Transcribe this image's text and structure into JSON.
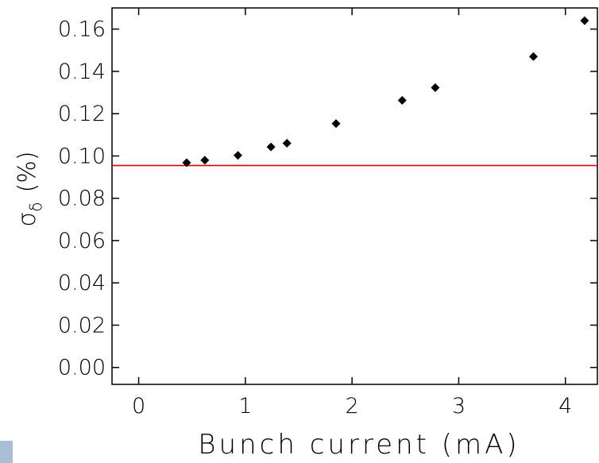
{
  "chart_data": {
    "type": "scatter",
    "xlabel": "Bunch current (mA)",
    "ylabel": "σ",
    "ylabel_sub": "δ",
    "ylabel_unit": "(%)",
    "xlim": [
      -0.25,
      4.3
    ],
    "ylim": [
      -0.008,
      0.17
    ],
    "xticks": [
      0,
      1,
      2,
      3,
      4
    ],
    "xtick_labels": [
      "0",
      "1",
      "2",
      "3",
      "4"
    ],
    "yticks": [
      0.0,
      0.02,
      0.04,
      0.06,
      0.08,
      0.1,
      0.12,
      0.14,
      0.16
    ],
    "ytick_labels": [
      "0.00",
      "0.02",
      "0.04",
      "0.06",
      "0.08",
      "0.10",
      "0.12",
      "0.14",
      "0.16"
    ],
    "grid": false,
    "series": [
      {
        "marker": "diamond",
        "color": "#000000",
        "points": [
          {
            "x": 0.45,
            "y": 0.0968
          },
          {
            "x": 0.62,
            "y": 0.098
          },
          {
            "x": 0.93,
            "y": 0.1003
          },
          {
            "x": 1.24,
            "y": 0.1043
          },
          {
            "x": 1.39,
            "y": 0.106
          },
          {
            "x": 1.85,
            "y": 0.1153
          },
          {
            "x": 2.47,
            "y": 0.1263
          },
          {
            "x": 2.78,
            "y": 0.1323
          },
          {
            "x": 3.7,
            "y": 0.147
          },
          {
            "x": 4.18,
            "y": 0.164
          }
        ]
      }
    ],
    "reference_line": {
      "y": 0.0955,
      "color": "#e00000"
    }
  }
}
